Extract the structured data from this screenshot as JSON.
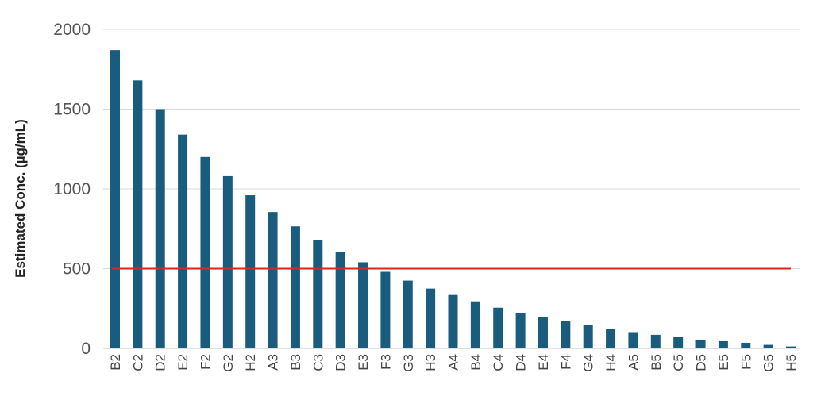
{
  "chart_data": {
    "type": "bar",
    "title": "",
    "xlabel": "",
    "ylabel": "Estimated Conc. (µg/mL)",
    "ylim": [
      0,
      2000
    ],
    "yticks": [
      0,
      500,
      1000,
      1500,
      2000
    ],
    "grid": true,
    "bar_color": "#1a5c7e",
    "categories": [
      "B2",
      "C2",
      "D2",
      "E2",
      "F2",
      "G2",
      "H2",
      "A3",
      "B3",
      "C3",
      "D3",
      "E3",
      "F3",
      "G3",
      "H3",
      "A4",
      "B4",
      "C4",
      "D4",
      "E4",
      "F4",
      "G4",
      "H4",
      "A5",
      "B5",
      "C5",
      "D5",
      "E5",
      "F5",
      "G5",
      "H5"
    ],
    "values": [
      1870,
      1680,
      1500,
      1340,
      1200,
      1080,
      960,
      855,
      765,
      680,
      605,
      540,
      480,
      425,
      375,
      335,
      295,
      255,
      220,
      195,
      170,
      145,
      120,
      102,
      85,
      70,
      55,
      45,
      35,
      22,
      12
    ],
    "reference_line": {
      "value": 500,
      "color": "#e0231c"
    }
  }
}
